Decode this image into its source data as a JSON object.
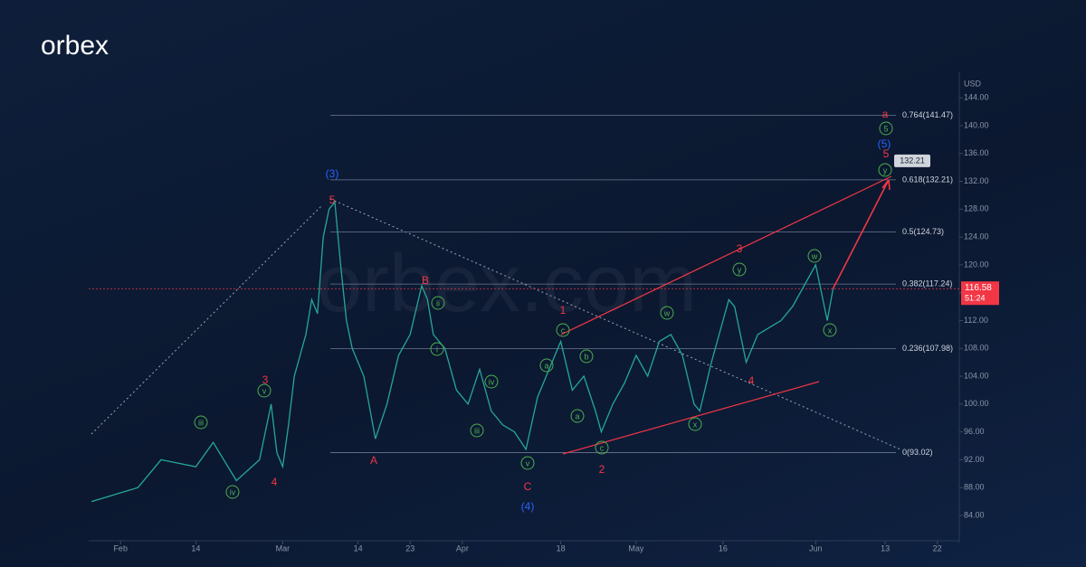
{
  "brand": "orbex",
  "watermark": "orbex.com",
  "chart_data": {
    "type": "line",
    "currency": "USD",
    "x": [
      27,
      35,
      39,
      45,
      48,
      52,
      56,
      58,
      59,
      60,
      61,
      62,
      64,
      65,
      66,
      67,
      68,
      69,
      70,
      71,
      72,
      74,
      76,
      78,
      80,
      82,
      84,
      85,
      86,
      88,
      90,
      92,
      94,
      96,
      98,
      100,
      102,
      104,
      106,
      108,
      110,
      112,
      114,
      115,
      117,
      119,
      121,
      123,
      125,
      127,
      129,
      131,
      132,
      134,
      136,
      137,
      138,
      140,
      142,
      144,
      146,
      148,
      150,
      152,
      153,
      154,
      155
    ],
    "series": [
      {
        "color": "#26a69a",
        "values": [
          86,
          88,
          92,
          91,
          94.5,
          89,
          92,
          100,
          93,
          91,
          97,
          104,
          110,
          115,
          113,
          124,
          128,
          129,
          120,
          112,
          108,
          104,
          95,
          100,
          107,
          110,
          117,
          115,
          110,
          108,
          102,
          100,
          105,
          99,
          97,
          96,
          93.5,
          101,
          105,
          109,
          102,
          104,
          99,
          96,
          100,
          103,
          107,
          104,
          109,
          110,
          107,
          100,
          99,
          106,
          112,
          115,
          114,
          106,
          110,
          111,
          112,
          114,
          117,
          120,
          116,
          112,
          116.58
        ]
      }
    ],
    "xlim": [
      26.5,
      176.8
    ],
    "ylim": [
      81.4,
      146.1
    ],
    "xticks": [
      {
        "value": 32,
        "label": "Feb"
      },
      {
        "value": 45,
        "label": "14"
      },
      {
        "value": 60,
        "label": "Mar"
      },
      {
        "value": 73,
        "label": "14"
      },
      {
        "value": 82,
        "label": "23"
      },
      {
        "value": 91,
        "label": "Apr"
      },
      {
        "value": 108,
        "label": "18"
      },
      {
        "value": 121,
        "label": "May"
      },
      {
        "value": 136,
        "label": "16"
      },
      {
        "value": 152,
        "label": "Jun"
      },
      {
        "value": 164,
        "label": "13"
      },
      {
        "value": 173,
        "label": "22"
      }
    ],
    "yticks": [
      {
        "value": 84,
        "label": "84.00"
      },
      {
        "value": 88,
        "label": "88.00"
      },
      {
        "value": 92,
        "label": "92.00"
      },
      {
        "value": 96,
        "label": "96.00"
      },
      {
        "value": 100,
        "label": "100.00"
      },
      {
        "value": 104,
        "label": "104.00"
      },
      {
        "value": 108,
        "label": "108.00"
      },
      {
        "value": 112,
        "label": "112.00"
      },
      {
        "value": 116,
        "label": "116.00"
      },
      {
        "value": 120,
        "label": "120.00"
      },
      {
        "value": 124,
        "label": "124.00"
      },
      {
        "value": 128,
        "label": "128.00"
      },
      {
        "value": 132,
        "label": "132.00"
      },
      {
        "value": 136,
        "label": "136.00"
      },
      {
        "value": 140,
        "label": "140.00"
      },
      {
        "value": 144,
        "label": "144.00"
      }
    ],
    "fib_levels": [
      {
        "value": 141.47,
        "label": "0.764(141.47)"
      },
      {
        "value": 132.21,
        "label": "0.618(132.21)"
      },
      {
        "value": 124.73,
        "label": "0.5(124.73)"
      },
      {
        "value": 117.24,
        "label": "0.382(117.24)"
      },
      {
        "value": 107.98,
        "label": "0.236(107.98)"
      },
      {
        "value": 93.02,
        "label": "0(93.02)"
      }
    ],
    "last_price": {
      "value": 116.58,
      "label": "116.58"
    },
    "countdown": "51:24",
    "target": {
      "value": 132.21,
      "label": "132.21"
    },
    "wave_labels": [
      "(3)",
      "5",
      "3",
      "4",
      "v",
      "iii",
      "iv",
      "A",
      "B",
      "ii",
      "i",
      "iv",
      "iii",
      "v",
      "C",
      "(4)",
      "1",
      "c",
      "a",
      "b",
      "a",
      "c",
      "2",
      "w",
      "x",
      "y",
      "3",
      "4",
      "w",
      "x",
      "y",
      "5",
      "(5)",
      "5",
      "a"
    ]
  }
}
